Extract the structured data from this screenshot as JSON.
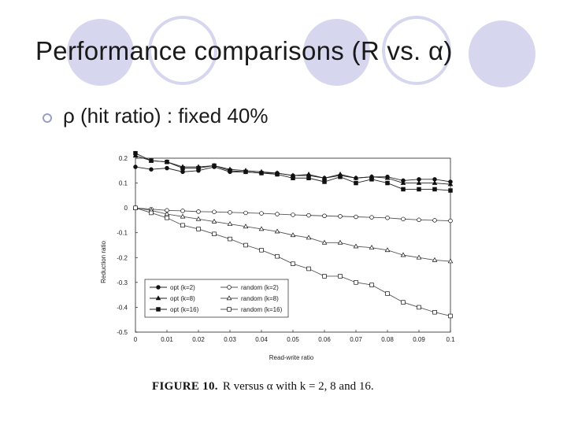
{
  "slide": {
    "title": "Performance comparisons (R vs. α)",
    "bullet": "ρ (hit ratio) : fixed 40%"
  },
  "caption": {
    "label": "FIGURE 10.",
    "text": "R versus α with k = 2, 8 and 16."
  },
  "colors": {
    "deco": "#d6d6ee",
    "bullet": "#9aa0c4",
    "series": "#222222",
    "random_series": "#555555"
  },
  "chart_data": {
    "type": "line",
    "xlabel": "Read-write ratio",
    "ylabel": "Reduction ratio",
    "xlim": [
      0,
      0.1
    ],
    "ylim": [
      -0.5,
      0.2
    ],
    "x_ticks": [
      "0",
      "0.01",
      "0.02",
      "0.03",
      "0.04",
      "0.05",
      "0.06",
      "0.07",
      "0.08",
      "0.09",
      "0.1"
    ],
    "y_ticks": [
      "0.2",
      "0.1",
      "0",
      "-0.1",
      "-0.2",
      "-0.3",
      "-0.4",
      "-0.5"
    ],
    "x": [
      0,
      0.005,
      0.01,
      0.015,
      0.02,
      0.025,
      0.03,
      0.035,
      0.04,
      0.045,
      0.05,
      0.055,
      0.06,
      0.065,
      0.07,
      0.075,
      0.08,
      0.085,
      0.09,
      0.095,
      0.1
    ],
    "legend_position": "bottom-left",
    "grid": false,
    "series": [
      {
        "name": "opt (k=2)",
        "marker": "circle-filled",
        "values": [
          0.165,
          0.155,
          0.16,
          0.145,
          0.15,
          0.165,
          0.145,
          0.145,
          0.14,
          0.14,
          0.13,
          0.13,
          0.12,
          0.13,
          0.12,
          0.125,
          0.125,
          0.11,
          0.115,
          0.115,
          0.105
        ]
      },
      {
        "name": "opt (k=8)",
        "marker": "triangle-filled",
        "values": [
          0.21,
          0.19,
          0.185,
          0.165,
          0.165,
          0.17,
          0.155,
          0.15,
          0.145,
          0.14,
          0.13,
          0.135,
          0.12,
          0.135,
          0.12,
          0.125,
          0.12,
          0.1,
          0.1,
          0.1,
          0.095
        ]
      },
      {
        "name": "opt (k=16)",
        "marker": "square-filled",
        "values": [
          0.22,
          0.19,
          0.185,
          0.16,
          0.16,
          0.17,
          0.15,
          0.145,
          0.14,
          0.135,
          0.12,
          0.12,
          0.105,
          0.125,
          0.1,
          0.115,
          0.1,
          0.075,
          0.075,
          0.075,
          0.07
        ]
      },
      {
        "name": "random (k=2)",
        "marker": "circle-open",
        "values": [
          0,
          -0.005,
          -0.01,
          -0.012,
          -0.015,
          -0.016,
          -0.018,
          -0.02,
          -0.022,
          -0.025,
          -0.028,
          -0.03,
          -0.032,
          -0.034,
          -0.036,
          -0.038,
          -0.04,
          -0.045,
          -0.048,
          -0.05,
          -0.052
        ]
      },
      {
        "name": "random (k=8)",
        "marker": "triangle-open",
        "values": [
          0,
          -0.01,
          -0.025,
          -0.035,
          -0.045,
          -0.055,
          -0.065,
          -0.075,
          -0.085,
          -0.095,
          -0.11,
          -0.12,
          -0.14,
          -0.14,
          -0.155,
          -0.16,
          -0.17,
          -0.19,
          -0.2,
          -0.21,
          -0.215
        ]
      },
      {
        "name": "random (k=16)",
        "marker": "square-open",
        "values": [
          0,
          -0.02,
          -0.04,
          -0.07,
          -0.085,
          -0.105,
          -0.125,
          -0.15,
          -0.17,
          -0.195,
          -0.225,
          -0.245,
          -0.275,
          -0.275,
          -0.3,
          -0.31,
          -0.345,
          -0.38,
          -0.4,
          -0.42,
          -0.435
        ]
      }
    ]
  }
}
